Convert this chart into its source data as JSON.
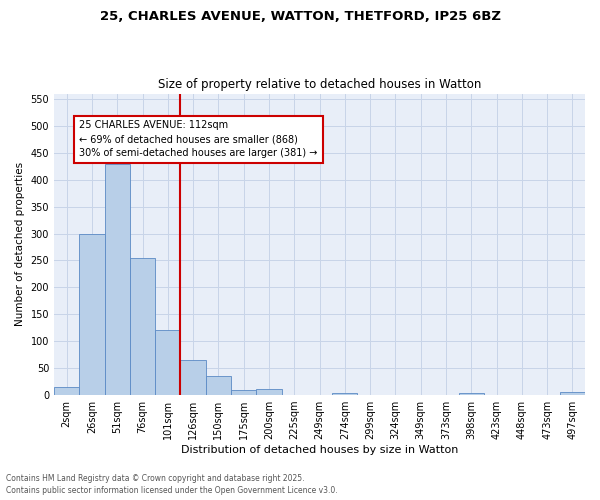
{
  "title_line1": "25, CHARLES AVENUE, WATTON, THETFORD, IP25 6BZ",
  "title_line2": "Size of property relative to detached houses in Watton",
  "xlabel": "Distribution of detached houses by size in Watton",
  "ylabel": "Number of detached properties",
  "bin_labels": [
    "2sqm",
    "26sqm",
    "51sqm",
    "76sqm",
    "101sqm",
    "126sqm",
    "150sqm",
    "175sqm",
    "200sqm",
    "225sqm",
    "249sqm",
    "274sqm",
    "299sqm",
    "324sqm",
    "349sqm",
    "373sqm",
    "398sqm",
    "423sqm",
    "448sqm",
    "473sqm",
    "497sqm"
  ],
  "bar_heights": [
    15,
    300,
    430,
    255,
    120,
    65,
    35,
    10,
    12,
    0,
    0,
    3,
    0,
    0,
    0,
    0,
    4,
    0,
    0,
    0,
    5
  ],
  "bar_color": "#b8cfe8",
  "bar_edge_color": "#5b8ac5",
  "grid_color": "#c8d4e8",
  "background_color": "#e8eef8",
  "vline_color": "#cc0000",
  "annotation_text": "25 CHARLES AVENUE: 112sqm\n← 69% of detached houses are smaller (868)\n30% of semi-detached houses are larger (381) →",
  "annotation_box_color": "#ffffff",
  "annotation_border_color": "#cc0000",
  "ylim": [
    0,
    560
  ],
  "yticks": [
    0,
    50,
    100,
    150,
    200,
    250,
    300,
    350,
    400,
    450,
    500,
    550
  ],
  "footnote1": "Contains HM Land Registry data © Crown copyright and database right 2025.",
  "footnote2": "Contains public sector information licensed under the Open Government Licence v3.0."
}
